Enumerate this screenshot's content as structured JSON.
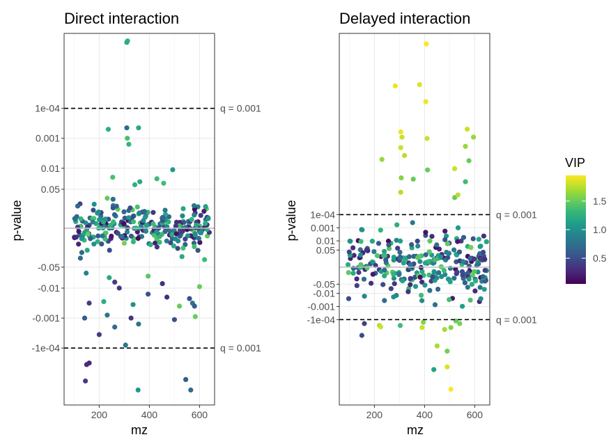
{
  "chart_data": [
    {
      "type": "scatter",
      "title": "Direct interaction",
      "xlabel": "mz",
      "ylabel": "p-value",
      "xlim": [
        60,
        660
      ],
      "x_ticks": [
        200,
        400,
        600
      ],
      "y_scale": "signed -log10(p); positive above zero line, negative below",
      "y_ticks": [
        "1e-04",
        "0.001",
        "0.01",
        "0.05",
        "-0.05",
        "-0.01",
        "-0.001",
        "-1e-04"
      ],
      "y_tick_values": [
        4,
        3,
        2,
        1.3,
        -1.3,
        -2,
        -3,
        -4
      ],
      "ylim": [
        -5.9,
        6.5
      ],
      "hlines": [
        {
          "y": 4,
          "style": "dashed",
          "label": "q = 0.001"
        },
        {
          "y": -4,
          "style": "dashed",
          "label": "q = 0.001"
        },
        {
          "y": 0,
          "style": "solid-gray",
          "label": ""
        }
      ],
      "grid": true,
      "points": [
        {
          "x": 310,
          "y": 6.2,
          "vip": 1.2
        },
        {
          "x": 313,
          "y": 6.25,
          "vip": 1.25
        },
        {
          "x": 236,
          "y": 3.3,
          "vip": 1.25
        },
        {
          "x": 310,
          "y": 3.35,
          "vip": 0.7
        },
        {
          "x": 357,
          "y": 3.35,
          "vip": 1.2
        },
        {
          "x": 312,
          "y": 3.0,
          "vip": 1.4
        },
        {
          "x": 318,
          "y": 2.8,
          "vip": 1.3
        },
        {
          "x": 493,
          "y": 1.95,
          "vip": 1.1
        },
        {
          "x": 254,
          "y": 1.7,
          "vip": 1.4
        },
        {
          "x": 430,
          "y": 1.65,
          "vip": 1.35
        },
        {
          "x": 457,
          "y": 1.5,
          "vip": 1.35
        },
        {
          "x": 362,
          "y": 1.55,
          "vip": 1.2
        },
        {
          "x": 342,
          "y": 1.45,
          "vip": 1.25
        },
        {
          "x": 232,
          "y": 1.0,
          "vip": 1.5
        },
        {
          "x": 360,
          "y": 0.5,
          "vip": 0.9
        },
        {
          "x": 578,
          "y": 0.75,
          "vip": 0.8
        },
        {
          "x": 535,
          "y": 0.65,
          "vip": 1.2
        },
        {
          "x": 318,
          "y": 0.35,
          "vip": 1.0
        },
        {
          "x": 587,
          "y": 0.1,
          "vip": 1.2
        },
        {
          "x": 245,
          "y": 0.1,
          "vip": 1.3
        },
        {
          "x": 347,
          "y": 0.0,
          "vip": 1.2
        },
        {
          "x": 150,
          "y": -0.05,
          "vip": 1.15
        },
        {
          "x": 437,
          "y": 0.0,
          "vip": 0.5
        },
        {
          "x": 198,
          "y": 0.0,
          "vip": 1.2
        },
        {
          "x": 470,
          "y": 0.05,
          "vip": 0.95
        },
        {
          "x": 130,
          "y": -0.35,
          "vip": 1.05
        },
        {
          "x": 155,
          "y": -0.2,
          "vip": 1.5
        },
        {
          "x": 300,
          "y": -0.5,
          "vip": 1.55
        },
        {
          "x": 405,
          "y": -0.55,
          "vip": 1.25
        },
        {
          "x": 165,
          "y": -0.35,
          "vip": 0.6
        },
        {
          "x": 125,
          "y": -1.0,
          "vip": 0.7
        },
        {
          "x": 620,
          "y": -1.05,
          "vip": 1.35
        },
        {
          "x": 530,
          "y": -0.95,
          "vip": 1.2
        },
        {
          "x": 148,
          "y": -1.5,
          "vip": 0.9
        },
        {
          "x": 395,
          "y": -1.6,
          "vip": 1.45
        },
        {
          "x": 240,
          "y": -1.65,
          "vip": 1.2
        },
        {
          "x": 600,
          "y": -1.95,
          "vip": 1.5
        },
        {
          "x": 262,
          "y": -1.8,
          "vip": 0.4
        },
        {
          "x": 280,
          "y": -2.0,
          "vip": 0.35
        },
        {
          "x": 452,
          "y": -1.85,
          "vip": 0.3
        },
        {
          "x": 470,
          "y": -2.3,
          "vip": 0.3
        },
        {
          "x": 560,
          "y": -2.35,
          "vip": 0.5
        },
        {
          "x": 395,
          "y": -2.2,
          "vip": 0.55
        },
        {
          "x": 160,
          "y": -2.5,
          "vip": 0.4
        },
        {
          "x": 218,
          "y": -2.45,
          "vip": 1.25
        },
        {
          "x": 335,
          "y": -2.55,
          "vip": 1.0
        },
        {
          "x": 572,
          "y": -2.5,
          "vip": 0.8
        },
        {
          "x": 520,
          "y": -2.6,
          "vip": 1.5
        },
        {
          "x": 580,
          "y": -2.6,
          "vip": 0.6
        },
        {
          "x": 500,
          "y": -3.05,
          "vip": 0.5
        },
        {
          "x": 327,
          "y": -3.0,
          "vip": 0.35
        },
        {
          "x": 232,
          "y": -2.9,
          "vip": 0.8
        },
        {
          "x": 583,
          "y": -2.95,
          "vip": 1.5
        },
        {
          "x": 357,
          "y": -3.2,
          "vip": 0.8
        },
        {
          "x": 142,
          "y": -3.0,
          "vip": 0.6
        },
        {
          "x": 262,
          "y": -3.3,
          "vip": 0.7
        },
        {
          "x": 200,
          "y": -3.55,
          "vip": 0.4
        },
        {
          "x": 305,
          "y": -3.9,
          "vip": 0.8
        },
        {
          "x": 160,
          "y": -4.5,
          "vip": 0.25
        },
        {
          "x": 150,
          "y": -4.55,
          "vip": 0.3
        },
        {
          "x": 145,
          "y": -5.1,
          "vip": 0.4
        },
        {
          "x": 545,
          "y": -5.05,
          "vip": 0.6
        },
        {
          "x": 355,
          "y": -5.4,
          "vip": 1.05
        },
        {
          "x": 565,
          "y": -5.4,
          "vip": 0.7
        }
      ],
      "cluster": {
        "x_range": [
          100,
          640
        ],
        "y_range": [
          -1.0,
          1.1
        ],
        "count": 260
      }
    },
    {
      "type": "scatter",
      "title": "Delayed interaction",
      "xlabel": "mz",
      "ylabel": "p-value",
      "xlim": [
        60,
        660
      ],
      "x_ticks": [
        200,
        400,
        600
      ],
      "y_scale": "signed -log10(p); positive above zero line, negative below",
      "y_ticks": [
        "1e-04",
        "0.001",
        "0.01",
        "0.05",
        "-0.05",
        "-0.01",
        "-0.001",
        "-1e-04"
      ],
      "y_tick_values": [
        4,
        3,
        2,
        1.3,
        -1.3,
        -2,
        -3,
        -4
      ],
      "ylim": [
        -10.5,
        17.8
      ],
      "hlines": [
        {
          "y": 4,
          "style": "dashed",
          "label": "q = 0.001"
        },
        {
          "y": -4,
          "style": "dashed",
          "label": "q = 0.001"
        },
        {
          "y": 0,
          "style": "solid-gray",
          "label": ""
        }
      ],
      "grid": true,
      "points": [
        {
          "x": 407,
          "y": 17.0,
          "vip": 1.95
        },
        {
          "x": 283,
          "y": 13.8,
          "vip": 1.9
        },
        {
          "x": 380,
          "y": 13.9,
          "vip": 1.85
        },
        {
          "x": 405,
          "y": 12.6,
          "vip": 1.9
        },
        {
          "x": 305,
          "y": 10.3,
          "vip": 1.9
        },
        {
          "x": 310,
          "y": 9.9,
          "vip": 1.8
        },
        {
          "x": 410,
          "y": 9.8,
          "vip": 1.8
        },
        {
          "x": 570,
          "y": 10.5,
          "vip": 1.8
        },
        {
          "x": 595,
          "y": 9.9,
          "vip": 1.65
        },
        {
          "x": 563,
          "y": 9.2,
          "vip": 1.65
        },
        {
          "x": 305,
          "y": 9.1,
          "vip": 1.8
        },
        {
          "x": 320,
          "y": 8.5,
          "vip": 1.75
        },
        {
          "x": 230,
          "y": 8.2,
          "vip": 1.65
        },
        {
          "x": 412,
          "y": 7.4,
          "vip": 1.5
        },
        {
          "x": 520,
          "y": 7.5,
          "vip": 1.8
        },
        {
          "x": 577,
          "y": 8.1,
          "vip": 1.5
        },
        {
          "x": 307,
          "y": 6.8,
          "vip": 1.6
        },
        {
          "x": 355,
          "y": 6.7,
          "vip": 1.5
        },
        {
          "x": 305,
          "y": 5.7,
          "vip": 1.75
        },
        {
          "x": 520,
          "y": 5.3,
          "vip": 1.5
        },
        {
          "x": 533,
          "y": 5.5,
          "vip": 1.75
        },
        {
          "x": 563,
          "y": 6.5,
          "vip": 1.35
        },
        {
          "x": 585,
          "y": 1.5,
          "vip": 1.55
        },
        {
          "x": 640,
          "y": 0.6,
          "vip": 0.3
        },
        {
          "x": 505,
          "y": -4.6,
          "vip": 1.6
        },
        {
          "x": 480,
          "y": -4.75,
          "vip": 1.7
        },
        {
          "x": 525,
          "y": -4.1,
          "vip": 1.5
        },
        {
          "x": 540,
          "y": -4.3,
          "vip": 1.55
        },
        {
          "x": 160,
          "y": -4.3,
          "vip": 0.4
        },
        {
          "x": 220,
          "y": -4.45,
          "vip": 1.7
        },
        {
          "x": 225,
          "y": -4.55,
          "vip": 1.8
        },
        {
          "x": 303,
          "y": -4.45,
          "vip": 1.35
        },
        {
          "x": 390,
          "y": -4.6,
          "vip": 1.8
        },
        {
          "x": 395,
          "y": -4.2,
          "vip": 1.6
        },
        {
          "x": 150,
          "y": -5.2,
          "vip": 0.5
        },
        {
          "x": 450,
          "y": -6.0,
          "vip": 1.7
        },
        {
          "x": 490,
          "y": -6.4,
          "vip": 1.55
        },
        {
          "x": 437,
          "y": -7.8,
          "vip": 1.15
        },
        {
          "x": 490,
          "y": -7.6,
          "vip": 1.85
        },
        {
          "x": 505,
          "y": -9.3,
          "vip": 1.95
        }
      ],
      "cluster": {
        "x_range": [
          95,
          650
        ],
        "y_range": [
          -3.6,
          3.9
        ],
        "count": 270
      }
    }
  ],
  "legend": {
    "title": "VIP",
    "ticks": [
      "0.5",
      "1.0",
      "1.5"
    ],
    "tick_values": [
      0.5,
      1.0,
      1.5
    ],
    "range": [
      0.05,
      1.95
    ],
    "palette": [
      "#440154",
      "#482878",
      "#3e4989",
      "#31688e",
      "#26828e",
      "#1f9e89",
      "#35b779",
      "#6ece58",
      "#b5de2b",
      "#fde725"
    ]
  }
}
